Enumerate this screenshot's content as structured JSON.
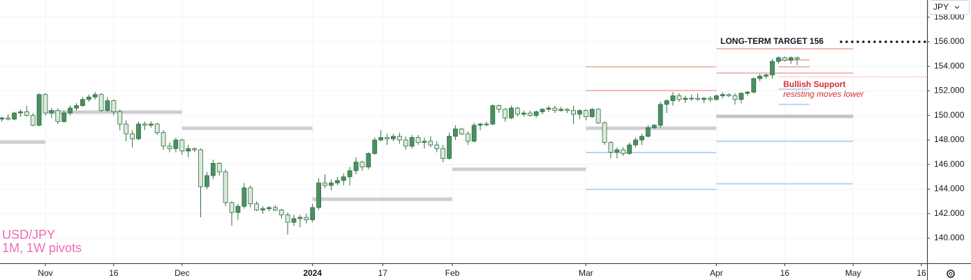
{
  "chart_data": {
    "type": "candlestick",
    "title": "USD/JPY",
    "subtitle": "1M, 1W pivots",
    "currency": "JPY",
    "up_color": "#4a9160",
    "down_color": "#dcebd9",
    "outline_color": "#2f6b43",
    "grid": true,
    "xlim": [
      -7.3,
      141.9
    ],
    "ylim": [
      137.96,
      159.4
    ],
    "yticks": [
      {
        "value": 140,
        "label": "140.000"
      },
      {
        "value": 142,
        "label": "142.000"
      },
      {
        "value": 144,
        "label": "144.000"
      },
      {
        "value": 146,
        "label": "146.000"
      },
      {
        "value": 148,
        "label": "148.000"
      },
      {
        "value": 150,
        "label": "150.000"
      },
      {
        "value": 152,
        "label": "152.000"
      },
      {
        "value": 154,
        "label": "154.000"
      },
      {
        "value": 156,
        "label": "156.000"
      },
      {
        "value": 158,
        "label": "158.000"
      }
    ],
    "xticks": [
      {
        "value": 0,
        "label": "Nov"
      },
      {
        "value": 11,
        "label": "16"
      },
      {
        "value": 22,
        "label": "Dec"
      },
      {
        "value": 43,
        "label": "2024"
      },
      {
        "value": 54.3,
        "label": "17"
      },
      {
        "value": 65.5,
        "label": "Feb"
      },
      {
        "value": 87,
        "label": "Mar"
      },
      {
        "value": 108,
        "label": "Apr"
      },
      {
        "value": 119,
        "label": "16"
      },
      {
        "value": 130,
        "label": "May"
      },
      {
        "value": 141,
        "label": "16"
      }
    ],
    "x": [
      -7,
      -6,
      -5,
      -4,
      -3,
      -2,
      -1,
      0,
      1,
      2,
      3,
      4,
      5,
      6,
      7,
      8,
      9,
      10,
      11,
      12,
      13,
      14,
      15,
      16,
      17,
      18,
      19,
      20,
      21,
      22,
      23,
      24,
      25,
      26,
      27,
      28,
      29,
      30,
      31,
      32,
      33,
      34,
      35,
      36,
      37,
      38,
      39,
      40,
      41,
      42,
      43,
      44,
      45,
      46,
      47,
      48,
      49,
      50,
      51,
      52,
      53,
      54,
      55,
      56,
      57,
      58,
      59,
      60,
      61,
      62,
      63,
      64,
      65,
      66,
      67,
      68,
      69,
      70,
      71,
      72,
      73,
      74,
      75,
      76,
      77,
      78,
      79,
      80,
      81,
      82,
      83,
      84,
      85,
      86,
      87,
      88,
      89,
      90,
      91,
      92,
      93,
      94,
      95,
      96,
      97,
      98,
      99,
      100,
      101,
      102,
      103,
      104,
      105,
      106,
      107,
      108,
      109,
      110,
      111,
      112,
      113,
      114,
      115,
      116,
      117,
      118,
      119,
      120,
      121
    ],
    "open": [
      149.7,
      149.8,
      149.7,
      150.2,
      150.3,
      150.0,
      149.2,
      151.7,
      150.2,
      150.4,
      149.5,
      150.2,
      150.6,
      150.8,
      151.3,
      151.5,
      151.7,
      150.4,
      151.2,
      150.3,
      149.3,
      148.5,
      148.1,
      149.3,
      149.2,
      149.3,
      148.6,
      147.5,
      147.3,
      148.0,
      147.1,
      147.3,
      147.2,
      144.2,
      145.1,
      146.1,
      145.4,
      142.9,
      142.1,
      142.6,
      144.1,
      142.8,
      142.3,
      142.4,
      142.5,
      142.3,
      141.9,
      141.3,
      141.6,
      141.7,
      141.5,
      142.5,
      144.5,
      144.3,
      144.5,
      144.7,
      145.0,
      145.5,
      146.2,
      145.8,
      146.9,
      148.0,
      148.2,
      148.1,
      148.3,
      148.0,
      147.5,
      148.2,
      147.8,
      147.9,
      147.6,
      147.3,
      146.5,
      148.3,
      148.9,
      148.5,
      147.9,
      149.2,
      149.3,
      149.3,
      150.8,
      150.5,
      149.8,
      150.6,
      150.1,
      150.2,
      150.0,
      150.3,
      150.5,
      150.6,
      150.4,
      150.5,
      150.4,
      150.1,
      150.4,
      149.9,
      150.5,
      149.4,
      147.8,
      147.0,
      147.2,
      146.9,
      147.6,
      148.0,
      148.3,
      149.0,
      149.2,
      150.9,
      151.2,
      151.6,
      151.3,
      151.4,
      151.4,
      151.3,
      151.4,
      151.3,
      151.6,
      151.7,
      151.6,
      151.3,
      151.8,
      151.9,
      153.0,
      153.2,
      153.3,
      154.4,
      154.7,
      154.5,
      154.7
    ],
    "high": [
      149.9,
      150.1,
      150.3,
      150.5,
      150.8,
      150.2,
      151.8,
      151.8,
      150.6,
      150.6,
      150.4,
      150.8,
      151.0,
      151.5,
      151.7,
      151.9,
      151.8,
      151.5,
      151.3,
      150.5,
      149.6,
      148.8,
      149.5,
      149.5,
      149.5,
      149.4,
      148.8,
      147.8,
      148.2,
      148.1,
      147.6,
      147.4,
      147.3,
      145.4,
      146.4,
      146.2,
      145.6,
      143.0,
      142.8,
      144.5,
      144.3,
      143.0,
      142.6,
      142.6,
      142.7,
      142.4,
      142.1,
      141.9,
      141.9,
      142.0,
      142.8,
      144.9,
      145.2,
      144.8,
      145.0,
      145.3,
      145.8,
      146.6,
      146.3,
      147.0,
      148.2,
      148.8,
      148.5,
      148.5,
      148.6,
      148.3,
      148.4,
      148.4,
      148.2,
      148.3,
      147.9,
      147.6,
      148.6,
      149.2,
      149.0,
      148.7,
      149.4,
      149.4,
      149.5,
      150.9,
      150.9,
      150.6,
      150.8,
      150.7,
      150.4,
      150.4,
      150.4,
      150.6,
      150.8,
      150.8,
      150.7,
      150.6,
      150.8,
      150.5,
      150.5,
      150.6,
      150.6,
      149.5,
      147.9,
      147.4,
      147.4,
      147.8,
      148.2,
      148.5,
      149.2,
      149.3,
      151.1,
      151.3,
      151.9,
      151.8,
      151.6,
      151.7,
      151.8,
      151.5,
      151.6,
      151.7,
      151.9,
      151.8,
      151.8,
      151.9,
      152.0,
      153.1,
      153.4,
      153.4,
      154.6,
      154.8,
      154.8,
      154.8,
      154.8
    ],
    "low": [
      149.5,
      149.6,
      149.6,
      149.9,
      149.9,
      149.1,
      149.1,
      150.0,
      149.8,
      149.3,
      149.4,
      150.0,
      150.4,
      150.7,
      151.1,
      151.3,
      150.3,
      150.3,
      150.0,
      148.8,
      147.9,
      147.4,
      148.0,
      148.8,
      149.0,
      148.4,
      147.2,
      147.0,
      147.0,
      146.8,
      146.6,
      147.0,
      141.7,
      144.0,
      144.8,
      145.1,
      142.6,
      141.0,
      141.5,
      142.4,
      142.5,
      142.2,
      142.0,
      142.2,
      142.2,
      141.6,
      140.3,
      141.0,
      140.9,
      141.2,
      141.3,
      142.3,
      144.1,
      143.9,
      144.3,
      144.3,
      144.3,
      145.2,
      145.5,
      145.6,
      146.8,
      147.9,
      147.6,
      147.9,
      147.7,
      147.2,
      147.3,
      147.6,
      147.3,
      147.4,
      147.0,
      146.2,
      146.4,
      148.0,
      148.4,
      147.6,
      147.8,
      148.8,
      149.1,
      149.2,
      150.2,
      149.5,
      149.7,
      149.9,
      149.9,
      149.9,
      149.8,
      150.1,
      150.3,
      150.2,
      150.3,
      150.2,
      149.3,
      149.7,
      149.6,
      149.8,
      149.3,
      147.6,
      146.5,
      146.5,
      146.7,
      146.8,
      147.4,
      147.6,
      148.2,
      148.9,
      149.0,
      150.2,
      150.8,
      151.1,
      151.0,
      151.2,
      151.2,
      151.0,
      151.1,
      151.2,
      151.4,
      151.5,
      150.9,
      151.0,
      151.6,
      151.8,
      152.8,
      153.0,
      153.0,
      154.2,
      154.4,
      154.2,
      154.1
    ],
    "close": [
      149.8,
      149.7,
      150.2,
      150.3,
      150.0,
      149.2,
      151.7,
      150.2,
      150.4,
      149.5,
      150.2,
      150.6,
      150.8,
      151.3,
      151.5,
      151.7,
      150.4,
      151.2,
      150.3,
      149.3,
      148.5,
      148.1,
      149.3,
      149.2,
      149.3,
      148.6,
      147.5,
      147.3,
      148.0,
      147.1,
      147.3,
      147.2,
      144.2,
      145.1,
      146.1,
      145.4,
      142.9,
      142.1,
      142.6,
      144.1,
      142.8,
      142.3,
      142.4,
      142.5,
      142.3,
      141.9,
      141.3,
      141.6,
      141.7,
      141.5,
      142.5,
      144.5,
      144.3,
      144.5,
      144.7,
      145.0,
      145.5,
      146.2,
      145.8,
      146.9,
      148.0,
      148.2,
      148.1,
      148.3,
      148.0,
      147.5,
      148.2,
      147.8,
      147.9,
      147.6,
      147.3,
      146.5,
      148.3,
      148.9,
      148.5,
      147.9,
      149.2,
      149.3,
      149.3,
      150.8,
      150.5,
      149.8,
      150.6,
      150.1,
      150.2,
      150.0,
      150.3,
      150.5,
      150.6,
      150.4,
      150.5,
      150.4,
      150.1,
      150.4,
      149.9,
      150.5,
      149.4,
      147.8,
      147.0,
      147.2,
      146.9,
      147.6,
      148.0,
      148.3,
      149.0,
      149.2,
      150.9,
      151.2,
      151.6,
      151.3,
      151.4,
      151.4,
      151.3,
      151.4,
      151.3,
      151.6,
      151.7,
      151.6,
      151.3,
      151.8,
      151.9,
      153.0,
      153.2,
      153.3,
      154.4,
      154.7,
      154.5,
      154.7,
      154.6
    ],
    "levels": [
      {
        "start": -7.3,
        "end": 0,
        "value": 147.83,
        "color": "#cfcfcf",
        "width": 5
      },
      {
        "start": 0,
        "end": 22,
        "value": 150.27,
        "color": "#cfcfcf",
        "width": 5
      },
      {
        "start": 22,
        "end": 43,
        "value": 148.96,
        "color": "#cfcfcf",
        "width": 5
      },
      {
        "start": 43,
        "end": 65.5,
        "value": 143.18,
        "color": "#cfcfcf",
        "width": 5
      },
      {
        "start": 65.5,
        "end": 87,
        "value": 145.62,
        "color": "#cfcfcf",
        "width": 5
      },
      {
        "start": 87,
        "end": 108,
        "value": 148.96,
        "color": "#cfcfcf",
        "width": 5
      },
      {
        "start": 108,
        "end": 130,
        "value": 149.93,
        "color": "#c4c4c4",
        "width": 5
      },
      {
        "start": 87,
        "end": 108,
        "value": 153.96,
        "color": "#f4b8b2",
        "width": 2
      },
      {
        "start": 87,
        "end": 108,
        "value": 152.03,
        "color": "#f4b8b2",
        "width": 2
      },
      {
        "start": 108,
        "end": 130,
        "value": 155.43,
        "color": "#f4b8b2",
        "width": 2
      },
      {
        "start": 108,
        "end": 130,
        "value": 153.45,
        "color": "#f4b8b2",
        "width": 2
      },
      {
        "start": 118,
        "end": 123,
        "value": 154.52,
        "color": "#f4b8b2",
        "width": 2
      },
      {
        "start": 118,
        "end": 123,
        "value": 153.96,
        "color": "#f4b8b2",
        "width": 2
      },
      {
        "start": 87,
        "end": 108,
        "value": 146.98,
        "color": "#b7d6f2",
        "width": 2
      },
      {
        "start": 87,
        "end": 108,
        "value": 143.97,
        "color": "#b7d6f2",
        "width": 2
      },
      {
        "start": 108,
        "end": 130,
        "value": 147.89,
        "color": "#b7d6f2",
        "width": 2
      },
      {
        "start": 108,
        "end": 130,
        "value": 144.43,
        "color": "#b7d6f2",
        "width": 2
      },
      {
        "start": 118,
        "end": 123,
        "value": 152.14,
        "color": "#b7d6f2",
        "width": 2
      },
      {
        "start": 118,
        "end": 123,
        "value": 150.9,
        "color": "#b7d6f2",
        "width": 2
      }
    ],
    "dotted_levels": [
      {
        "start": 127,
        "end": 141.9,
        "value": 156,
        "color": "#000000",
        "width": 3
      },
      {
        "start": 118,
        "end": 141.9,
        "value": 153.15,
        "color": "#e05a4f",
        "width": 1
      }
    ],
    "annotations": {
      "target": "LONG-TERM TARGET 156",
      "support": "Bullish Support",
      "support_note": "resisting moves lower"
    }
  }
}
